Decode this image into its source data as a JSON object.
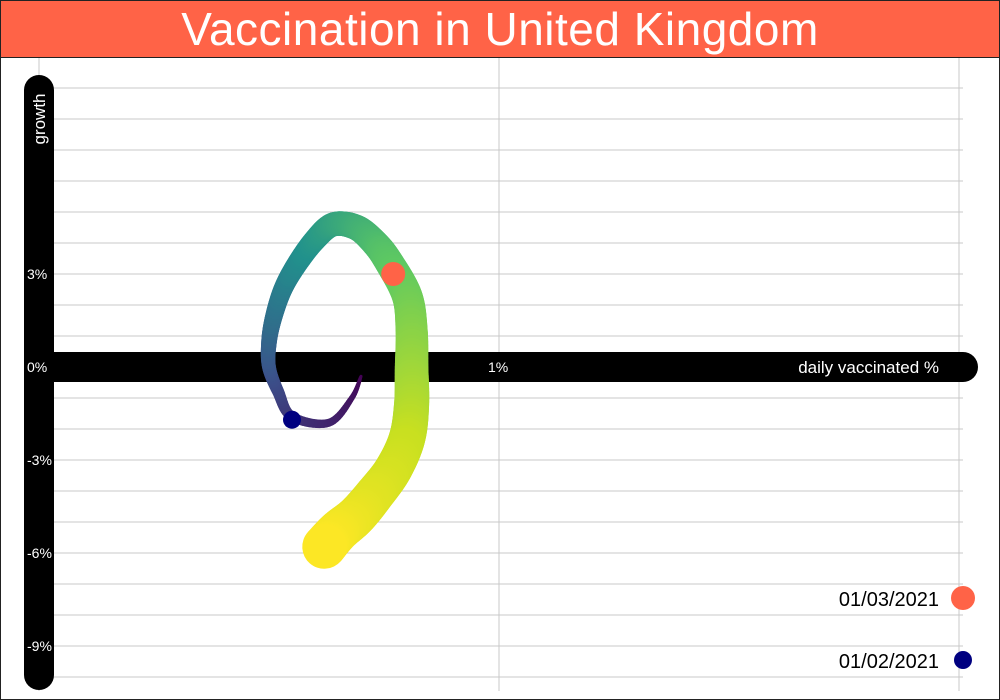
{
  "chart_data": {
    "type": "line",
    "title": "Vaccination in United Kingdom",
    "xlabel": "daily vaccinated %",
    "ylabel": "growth",
    "x_tick_labels": [
      "1%"
    ],
    "y_tick_labels": [
      "3%",
      "0%",
      "-3%",
      "-6%",
      "-9%"
    ],
    "xlim": [
      0,
      2
    ],
    "ylim": [
      -10,
      9
    ],
    "x_ticks": [
      1
    ],
    "y_ticks": [
      3,
      0,
      -3,
      -6,
      -9
    ],
    "grid": "horizontal and vertical",
    "series": [
      {
        "x": [
          0.7,
          0.68,
          0.63,
          0.55,
          0.52,
          0.5,
          0.5,
          0.51,
          0.53,
          0.56,
          0.6,
          0.64,
          0.69,
          0.73,
          0.76,
          0.8,
          0.81,
          0.81,
          0.81,
          0.8,
          0.77,
          0.73,
          0.69,
          0.65,
          0.62
        ],
        "y": [
          -0.3,
          -1.0,
          -1.8,
          -1.6,
          -0.8,
          0.0,
          0.8,
          1.6,
          2.5,
          3.3,
          4.1,
          4.6,
          4.5,
          4.0,
          3.4,
          2.3,
          1.2,
          0.0,
          -1.2,
          -2.3,
          -3.3,
          -4.1,
          -4.8,
          -5.3,
          -5.8
        ]
      }
    ],
    "color_scale": [
      "#440154",
      "#3b528b",
      "#21918c",
      "#5ec962",
      "#c8e020",
      "#fde725"
    ],
    "markers": [
      {
        "label": "01/03/2021",
        "x": 0.77,
        "y": 3.0,
        "color": "#ff6347"
      },
      {
        "label": "01/02/2021",
        "x": 0.55,
        "y": -1.7,
        "color": "#000080"
      }
    ],
    "colors": {
      "title_bg": "#ff6347",
      "axis": "#000000",
      "grid": "#c8c8c8"
    }
  }
}
